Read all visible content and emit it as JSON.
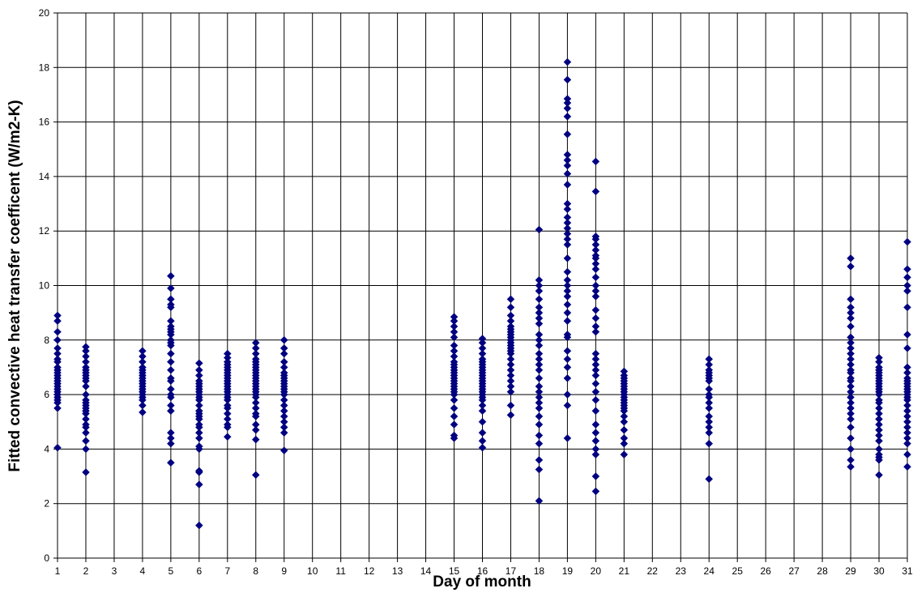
{
  "chart_data": {
    "type": "scatter",
    "title": "",
    "xlabel": "Day of month",
    "ylabel": "Fitted convective heat transfer coefficent (W/m2-K)",
    "xlim": [
      1,
      31
    ],
    "ylim": [
      0,
      20
    ],
    "x_ticks": [
      "1",
      "2",
      "3",
      "4",
      "5",
      "6",
      "7",
      "8",
      "9",
      "10",
      "11",
      "12",
      "13",
      "14",
      "15",
      "16",
      "17",
      "18",
      "19",
      "20",
      "21",
      "22",
      "23",
      "24",
      "25",
      "26",
      "27",
      "28",
      "29",
      "30",
      "31"
    ],
    "y_ticks": [
      "0",
      "2",
      "4",
      "6",
      "8",
      "10",
      "12",
      "14",
      "16",
      "18",
      "20"
    ],
    "grid": true,
    "legend": "none",
    "marker_color": "#000080",
    "series": [
      {
        "points": [
          {
            "day": 1,
            "values": [
              8.9,
              8.7,
              8.3,
              8.0,
              7.7,
              7.5,
              7.3,
              7.2,
              7.0,
              6.9,
              6.8,
              6.7,
              6.6,
              6.5,
              6.4,
              6.3,
              6.2,
              6.1,
              6.0,
              5.9,
              5.8,
              5.7,
              5.5,
              4.05
            ]
          },
          {
            "day": 2,
            "values": [
              7.75,
              7.6,
              7.4,
              7.2,
              7.0,
              6.9,
              6.8,
              6.7,
              6.6,
              6.5,
              6.3,
              6.0,
              5.8,
              5.7,
              5.6,
              5.5,
              5.4,
              5.3,
              5.1,
              4.9,
              4.8,
              4.6,
              4.3,
              4.0,
              3.15
            ]
          },
          {
            "day": 4,
            "values": [
              7.6,
              7.4,
              7.2,
              7.0,
              6.9,
              6.8,
              6.7,
              6.6,
              6.5,
              6.4,
              6.3,
              6.2,
              6.1,
              6.0,
              5.9,
              5.8,
              5.6,
              5.35
            ]
          },
          {
            "day": 5,
            "values": [
              10.35,
              9.9,
              9.5,
              9.3,
              9.2,
              8.7,
              8.5,
              8.4,
              8.3,
              8.2,
              8.0,
              7.9,
              7.8,
              7.5,
              7.2,
              6.9,
              6.6,
              6.5,
              6.2,
              6.0,
              5.9,
              5.6,
              5.4,
              4.6,
              4.4,
              4.2,
              3.5
            ]
          },
          {
            "day": 6,
            "values": [
              7.15,
              6.9,
              6.7,
              6.5,
              6.4,
              6.3,
              6.2,
              6.1,
              6.0,
              5.9,
              5.8,
              5.6,
              5.4,
              5.3,
              5.2,
              5.1,
              4.9,
              4.8,
              4.6,
              4.4,
              4.1,
              4.0,
              3.2,
              3.15,
              2.7,
              1.2
            ]
          },
          {
            "day": 7,
            "values": [
              7.5,
              7.35,
              7.2,
              7.1,
              7.0,
              6.9,
              6.8,
              6.7,
              6.6,
              6.5,
              6.4,
              6.3,
              6.2,
              6.1,
              6.0,
              5.9,
              5.8,
              5.6,
              5.5,
              5.3,
              5.1,
              4.9,
              4.8,
              4.45
            ]
          },
          {
            "day": 8,
            "values": [
              7.9,
              7.7,
              7.5,
              7.3,
              7.2,
              7.1,
              7.0,
              6.9,
              6.8,
              6.7,
              6.6,
              6.5,
              6.4,
              6.3,
              6.2,
              6.1,
              6.0,
              5.9,
              5.7,
              5.5,
              5.3,
              5.2,
              4.9,
              4.7,
              4.35,
              3.05
            ]
          },
          {
            "day": 9,
            "values": [
              8.0,
              7.7,
              7.5,
              7.2,
              7.0,
              6.8,
              6.7,
              6.6,
              6.5,
              6.4,
              6.3,
              6.2,
              6.1,
              6.0,
              5.8,
              5.6,
              5.4,
              5.2,
              5.0,
              4.8,
              4.6,
              3.95
            ]
          },
          {
            "day": 15,
            "values": [
              8.85,
              8.7,
              8.5,
              8.3,
              8.1,
              7.8,
              7.6,
              7.4,
              7.2,
              7.1,
              7.0,
              6.9,
              6.8,
              6.7,
              6.6,
              6.5,
              6.4,
              6.3,
              6.2,
              6.1,
              6.0,
              5.8,
              5.5,
              5.2,
              4.9,
              4.5,
              4.4
            ]
          },
          {
            "day": 16,
            "values": [
              8.05,
              7.9,
              7.7,
              7.5,
              7.3,
              7.2,
              7.1,
              7.0,
              6.9,
              6.8,
              6.7,
              6.6,
              6.5,
              6.4,
              6.3,
              6.2,
              6.1,
              6.0,
              5.9,
              5.8,
              5.6,
              5.4,
              5.0,
              4.6,
              4.3,
              4.05
            ]
          },
          {
            "day": 17,
            "values": [
              9.5,
              9.2,
              8.9,
              8.7,
              8.5,
              8.4,
              8.3,
              8.2,
              8.1,
              8.0,
              7.9,
              7.8,
              7.7,
              7.6,
              7.5,
              7.3,
              7.1,
              6.9,
              6.7,
              6.5,
              6.3,
              6.1,
              5.6,
              5.25
            ]
          },
          {
            "day": 18,
            "values": [
              12.05,
              10.2,
              10.0,
              9.8,
              9.5,
              9.2,
              9.0,
              8.8,
              8.6,
              8.2,
              8.0,
              7.8,
              7.5,
              7.3,
              7.1,
              6.9,
              6.6,
              6.3,
              6.1,
              5.9,
              5.7,
              5.5,
              5.2,
              4.9,
              4.5,
              4.2,
              3.6,
              3.25,
              2.1
            ]
          },
          {
            "day": 19,
            "values": [
              18.2,
              17.55,
              16.85,
              16.7,
              16.5,
              16.2,
              15.55,
              14.8,
              14.6,
              14.4,
              14.1,
              13.7,
              13.0,
              12.8,
              12.5,
              12.3,
              12.1,
              11.9,
              11.7,
              11.5,
              11.0,
              10.5,
              10.2,
              10.0,
              9.8,
              9.6,
              9.3,
              9.0,
              8.7,
              8.2,
              8.1,
              7.6,
              7.3,
              7.0,
              6.6,
              6.0,
              5.6,
              4.4
            ]
          },
          {
            "day": 20,
            "values": [
              14.55,
              13.45,
              11.8,
              11.7,
              11.5,
              11.3,
              11.1,
              11.0,
              10.8,
              10.6,
              10.3,
              10.0,
              9.8,
              9.6,
              9.1,
              8.8,
              8.5,
              8.3,
              7.5,
              7.3,
              7.1,
              6.9,
              6.7,
              6.4,
              6.1,
              5.8,
              5.4,
              4.9,
              4.6,
              4.3,
              4.0,
              3.8,
              3.0,
              2.45
            ]
          },
          {
            "day": 21,
            "values": [
              6.85,
              6.7,
              6.6,
              6.5,
              6.4,
              6.3,
              6.2,
              6.1,
              6.0,
              5.9,
              5.8,
              5.7,
              5.6,
              5.5,
              5.4,
              5.2,
              5.0,
              4.7,
              4.4,
              4.2,
              3.8
            ]
          },
          {
            "day": 24,
            "values": [
              7.3,
              7.1,
              6.9,
              6.8,
              6.7,
              6.6,
              6.5,
              6.2,
              6.0,
              5.9,
              5.7,
              5.5,
              5.2,
              5.0,
              4.8,
              4.6,
              4.2,
              2.9
            ]
          },
          {
            "day": 29,
            "values": [
              11.0,
              10.7,
              9.5,
              9.2,
              9.0,
              8.8,
              8.5,
              8.1,
              7.9,
              7.7,
              7.5,
              7.3,
              7.1,
              6.9,
              6.8,
              6.6,
              6.5,
              6.3,
              6.1,
              5.9,
              5.7,
              5.5,
              5.3,
              5.1,
              4.8,
              4.4,
              4.0,
              3.6,
              3.35
            ]
          },
          {
            "day": 30,
            "values": [
              7.35,
              7.2,
              7.0,
              6.9,
              6.8,
              6.7,
              6.6,
              6.5,
              6.4,
              6.3,
              6.2,
              6.1,
              6.0,
              5.8,
              5.7,
              5.5,
              5.3,
              5.1,
              4.9,
              4.7,
              4.5,
              4.3,
              4.0,
              3.8,
              3.7,
              3.6,
              3.05
            ]
          },
          {
            "day": 31,
            "values": [
              11.6,
              10.6,
              10.3,
              10.0,
              9.8,
              9.2,
              8.2,
              7.7,
              7.0,
              6.8,
              6.6,
              6.5,
              6.4,
              6.3,
              6.2,
              6.1,
              6.0,
              5.9,
              5.8,
              5.6,
              5.4,
              5.2,
              5.0,
              4.8,
              4.6,
              4.4,
              4.2,
              3.8,
              3.35
            ]
          }
        ]
      }
    ]
  }
}
